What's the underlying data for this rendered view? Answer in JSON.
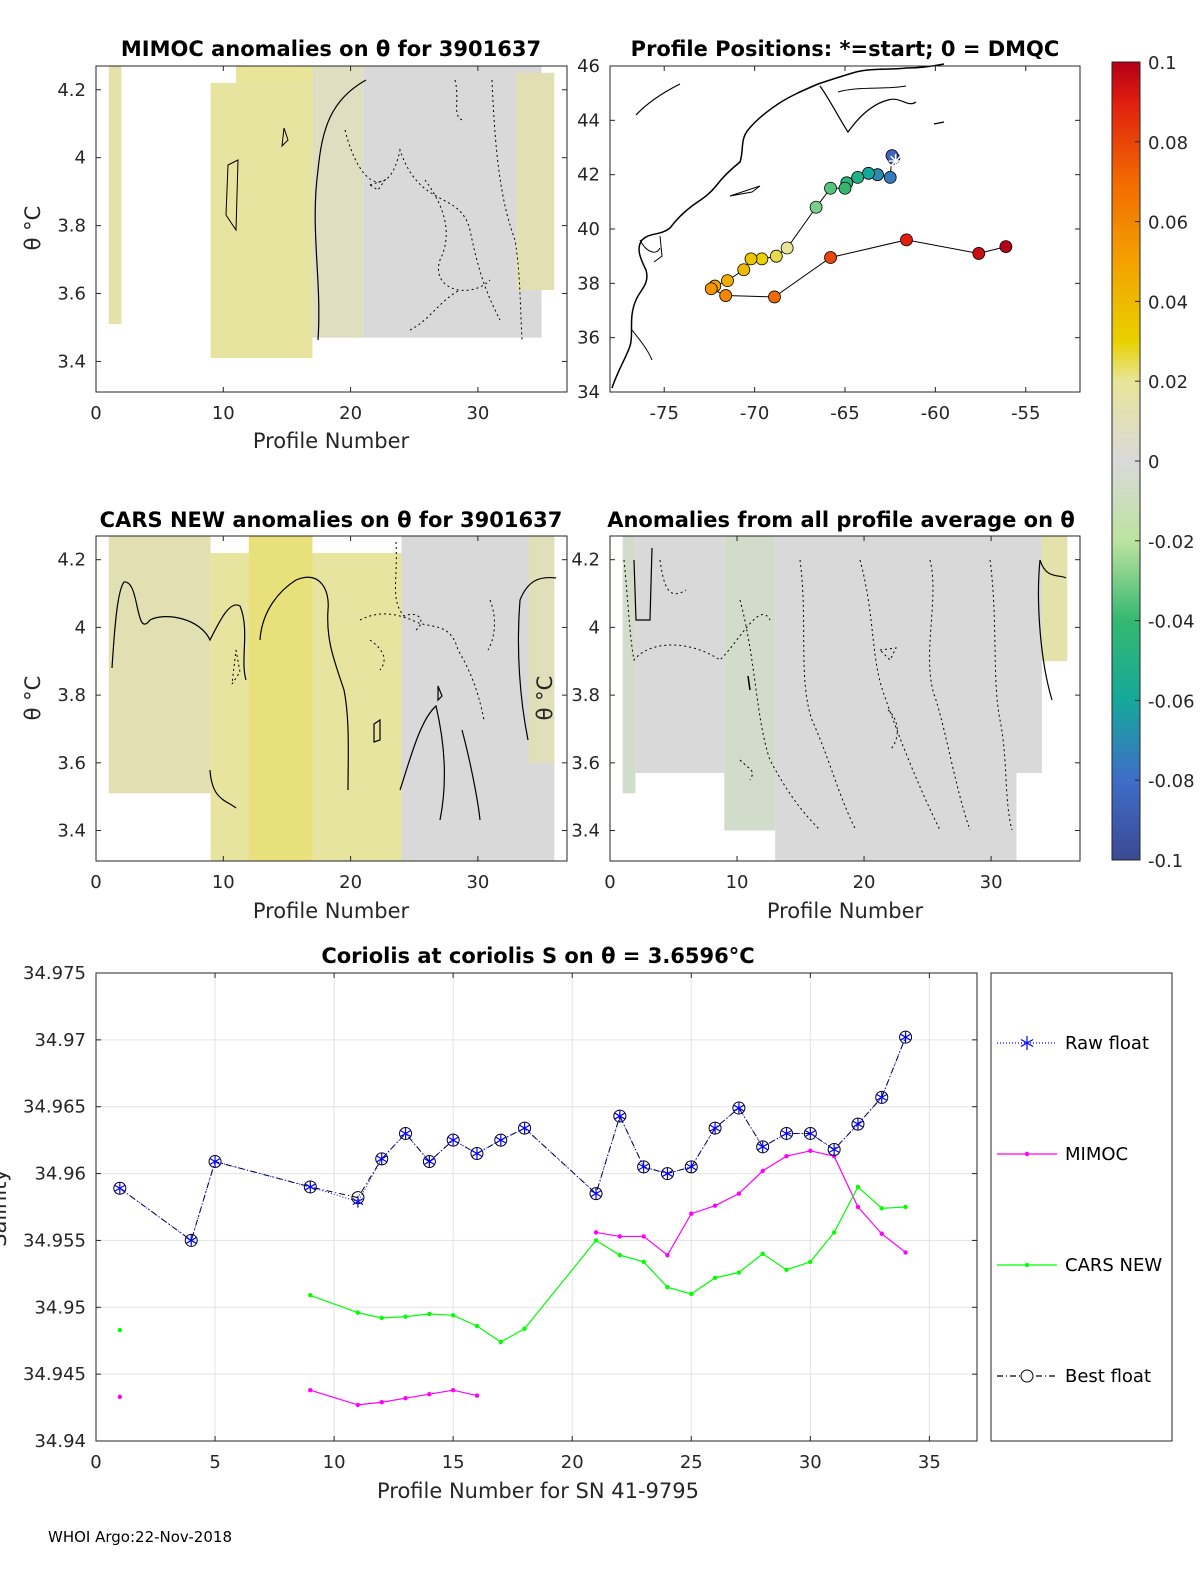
{
  "footer": "WHOI Argo:22-Nov-2018",
  "colors": {
    "raw": "#0000ff",
    "mimoc": "#ff00ff",
    "cars": "#00ff00",
    "best": "#000000",
    "anom_pos": "#e9e07a",
    "anom_neutral": "#d9d9d9",
    "anom_neg": "#cfe8b0",
    "track": "#000000"
  },
  "colorbar": {
    "ticks": [
      "0.1",
      "0.08",
      "0.06",
      "0.04",
      "0.02",
      "0",
      "-0.02",
      "-0.04",
      "-0.06",
      "-0.08",
      "-0.1"
    ],
    "range": [
      -0.1,
      0.1
    ],
    "colormap": "parula-jet",
    "stops": [
      {
        "v": -0.1,
        "c": "#3b4a94"
      },
      {
        "v": -0.08,
        "c": "#3f6dc8"
      },
      {
        "v": -0.06,
        "c": "#15a89a"
      },
      {
        "v": -0.04,
        "c": "#34b870"
      },
      {
        "v": -0.02,
        "c": "#bde3a0"
      },
      {
        "v": 0,
        "c": "#d9d9d9"
      },
      {
        "v": 0.02,
        "c": "#e8e59a"
      },
      {
        "v": 0.03,
        "c": "#e8d100"
      },
      {
        "v": 0.05,
        "c": "#f3a100"
      },
      {
        "v": 0.07,
        "c": "#f26b00"
      },
      {
        "v": 0.09,
        "c": "#e01e10"
      },
      {
        "v": 0.1,
        "c": "#b40016"
      }
    ]
  },
  "chart_data": [
    {
      "id": "mimoc_anom",
      "type": "heatmap",
      "title": "MIMOC anomalies on θ  for 3901637",
      "xlabel": "Profile Number",
      "ylabel": "θ °C",
      "xlim": [
        0,
        37
      ],
      "ylim": [
        3.31,
        4.27
      ],
      "xticks": [
        "0",
        "10",
        "20",
        "30"
      ],
      "yticks": [
        "3.4",
        "3.6",
        "3.8",
        "4",
        "4.2"
      ],
      "columns": [
        {
          "x0": 1,
          "x1": 2,
          "ymin": 3.51,
          "ymax": 4.27,
          "anom": 0.015
        },
        {
          "x0": 9,
          "x1": 17,
          "ymin": 3.41,
          "ymax": 4.22,
          "anom": 0.018
        },
        {
          "x0": 11,
          "x1": 17,
          "ymin": 4.22,
          "ymax": 4.27,
          "anom": 0.02
        },
        {
          "x0": 17,
          "x1": 21,
          "ymin": 3.47,
          "ymax": 4.27,
          "anom": 0.008
        },
        {
          "x0": 21,
          "x1": 35,
          "ymin": 3.47,
          "ymax": 4.27,
          "anom": 0.0
        },
        {
          "x0": 33,
          "x1": 36,
          "ymin": 3.61,
          "ymax": 4.25,
          "anom": 0.012
        }
      ]
    },
    {
      "id": "positions",
      "type": "scatter",
      "title": "Profile Positions: *=start; 0 = DMQC",
      "xlim": [
        -78,
        -52
      ],
      "ylim": [
        34,
        46
      ],
      "xticks": [
        "-75",
        "-70",
        "-65",
        "-60",
        "-55"
      ],
      "yticks": [
        "34",
        "36",
        "38",
        "40",
        "42",
        "44",
        "46"
      ],
      "track": [
        {
          "lon": -62.3,
          "lat": 42.6,
          "c": -0.09
        },
        {
          "lon": -62.4,
          "lat": 42.7,
          "c": -0.085
        },
        {
          "lon": -62.5,
          "lat": 41.9,
          "c": -0.075
        },
        {
          "lon": -63.2,
          "lat": 42.0,
          "c": -0.07
        },
        {
          "lon": -63.7,
          "lat": 42.05,
          "c": -0.06
        },
        {
          "lon": -64.3,
          "lat": 41.9,
          "c": -0.05
        },
        {
          "lon": -64.9,
          "lat": 41.7,
          "c": -0.045
        },
        {
          "lon": -65.0,
          "lat": 41.5,
          "c": -0.04
        },
        {
          "lon": -65.8,
          "lat": 41.5,
          "c": -0.035
        },
        {
          "lon": -66.6,
          "lat": 40.8,
          "c": -0.03
        },
        {
          "lon": -68.2,
          "lat": 39.3,
          "c": 0.02
        },
        {
          "lon": -68.8,
          "lat": 39.0,
          "c": 0.025
        },
        {
          "lon": -69.6,
          "lat": 38.9,
          "c": 0.03
        },
        {
          "lon": -70.2,
          "lat": 38.9,
          "c": 0.035
        },
        {
          "lon": -70.6,
          "lat": 38.5,
          "c": 0.04
        },
        {
          "lon": -71.5,
          "lat": 38.1,
          "c": 0.045
        },
        {
          "lon": -72.2,
          "lat": 37.9,
          "c": 0.05
        },
        {
          "lon": -72.4,
          "lat": 37.8,
          "c": 0.055
        },
        {
          "lon": -71.6,
          "lat": 37.55,
          "c": 0.06
        },
        {
          "lon": -68.9,
          "lat": 37.5,
          "c": 0.07
        },
        {
          "lon": -65.8,
          "lat": 38.95,
          "c": 0.08
        },
        {
          "lon": -61.6,
          "lat": 39.6,
          "c": 0.09
        },
        {
          "lon": -57.6,
          "lat": 39.1,
          "c": 0.095
        },
        {
          "lon": -56.1,
          "lat": 39.35,
          "c": 0.1
        }
      ],
      "start": {
        "lon": -62.2,
        "lat": 42.5
      }
    },
    {
      "id": "cars_anom",
      "type": "heatmap",
      "title": "CARS NEW anomalies on θ for 3901637",
      "xlabel": "Profile Number",
      "ylabel": "θ °C",
      "xlim": [
        0,
        37
      ],
      "ylim": [
        3.31,
        4.27
      ],
      "xticks": [
        "0",
        "10",
        "20",
        "30"
      ],
      "yticks": [
        "3.4",
        "3.6",
        "3.8",
        "4",
        "4.2"
      ],
      "columns": [
        {
          "x0": 1,
          "x1": 9,
          "ymin": 3.51,
          "ymax": 4.27,
          "anom": 0.012
        },
        {
          "x0": 9,
          "x1": 24,
          "ymin": 3.31,
          "ymax": 4.22,
          "anom": 0.018
        },
        {
          "x0": 12,
          "x1": 17,
          "ymin": 3.31,
          "ymax": 4.27,
          "anom": 0.022
        },
        {
          "x0": 24,
          "x1": 36,
          "ymin": 3.31,
          "ymax": 4.27,
          "anom": 0.0
        },
        {
          "x0": 34,
          "x1": 36,
          "ymin": 3.6,
          "ymax": 4.27,
          "anom": 0.01
        }
      ]
    },
    {
      "id": "all_avg_anom",
      "type": "heatmap",
      "title": "Anomalies from all profile average on θ",
      "xlabel": "Profile Number",
      "ylabel": "θ °C",
      "xlim": [
        0,
        37
      ],
      "ylim": [
        3.31,
        4.27
      ],
      "xticks": [
        "0",
        "10",
        "20",
        "30"
      ],
      "yticks": [
        "3.4",
        "3.6",
        "3.8",
        "4",
        "4.2"
      ],
      "columns": [
        {
          "x0": 1,
          "x1": 2,
          "ymin": 3.51,
          "ymax": 4.27,
          "anom": -0.005
        },
        {
          "x0": 2,
          "x1": 9,
          "ymin": 3.57,
          "ymax": 4.27,
          "anom": 0.0
        },
        {
          "x0": 9,
          "x1": 13,
          "ymin": 3.4,
          "ymax": 4.27,
          "anom": -0.005
        },
        {
          "x0": 13,
          "x1": 32,
          "ymin": 3.31,
          "ymax": 4.27,
          "anom": 0.0
        },
        {
          "x0": 32,
          "x1": 34,
          "ymin": 3.57,
          "ymax": 4.27,
          "anom": 0.0
        },
        {
          "x0": 34,
          "x1": 36,
          "ymin": 3.9,
          "ymax": 4.27,
          "anom": 0.015
        }
      ]
    },
    {
      "id": "salinity",
      "type": "line",
      "title": "Coriolis at coriolis S on θ = 3.6596°C",
      "xlabel": "Profile Number for SN 41-9795",
      "ylabel": "Salinity",
      "xlim": [
        0,
        37
      ],
      "ylim": [
        34.94,
        34.975
      ],
      "xticks": [
        "0",
        "5",
        "10",
        "15",
        "20",
        "25",
        "30",
        "35"
      ],
      "yticks": [
        "34.94",
        "34.945",
        "34.95",
        "34.955",
        "34.96",
        "34.965",
        "34.97",
        "34.975"
      ],
      "series": [
        {
          "name": "Raw float",
          "style": "raw",
          "x": [
            1,
            4,
            5,
            9,
            11,
            12,
            13,
            14,
            15,
            16,
            17,
            18,
            21,
            22,
            23,
            24,
            25,
            26,
            27,
            28,
            29,
            30,
            31,
            32,
            33,
            34
          ],
          "y": [
            34.9589,
            34.955,
            34.9609,
            34.959,
            34.9579,
            34.9611,
            34.963,
            34.9609,
            34.9625,
            34.9615,
            34.9625,
            34.9634,
            34.9585,
            34.9643,
            34.9605,
            34.96,
            34.9605,
            34.9634,
            34.9649,
            34.962,
            34.963,
            34.963,
            34.9618,
            34.9637,
            34.9657,
            34.9702
          ]
        },
        {
          "name": "MIMOC",
          "style": "mimoc",
          "segments": [
            {
              "x": [
                1
              ],
              "y": [
                34.9433
              ]
            },
            {
              "x": [
                9,
                11,
                12,
                13,
                14,
                15,
                16
              ],
              "y": [
                34.9438,
                34.9427,
                34.9429,
                34.9432,
                34.9435,
                34.9438,
                34.9434
              ]
            },
            {
              "x": [
                21,
                22,
                23,
                24,
                25,
                26,
                27,
                28,
                29,
                30,
                31,
                32,
                33,
                34
              ],
              "y": [
                34.9556,
                34.9553,
                34.9553,
                34.9539,
                34.957,
                34.9576,
                34.9585,
                34.9602,
                34.9613,
                34.9617,
                34.9613,
                34.9575,
                34.9555,
                34.9541
              ]
            }
          ]
        },
        {
          "name": "CARS NEW",
          "style": "cars",
          "segments": [
            {
              "x": [
                1
              ],
              "y": [
                34.9483
              ]
            },
            {
              "x": [
                9,
                11,
                12,
                13,
                14,
                15,
                16,
                17,
                18,
                21,
                22,
                23,
                24,
                25,
                26,
                27,
                28,
                29,
                30,
                31,
                32,
                33,
                34
              ],
              "y": [
                34.9509,
                34.9496,
                34.9492,
                34.9493,
                34.9495,
                34.9494,
                34.9486,
                34.9474,
                34.9484,
                34.955,
                34.9539,
                34.9534,
                34.9515,
                34.951,
                34.9522,
                34.9526,
                34.954,
                34.9528,
                34.9534,
                34.9556,
                34.959,
                34.9574,
                34.9575
              ]
            }
          ]
        },
        {
          "name": "Best float",
          "style": "best",
          "x": [
            1,
            4,
            5,
            9,
            11,
            12,
            13,
            14,
            15,
            16,
            17,
            18,
            21,
            22,
            23,
            24,
            25,
            26,
            27,
            28,
            29,
            30,
            31,
            32,
            33,
            34
          ],
          "y": [
            34.9589,
            34.955,
            34.9609,
            34.959,
            34.9582,
            34.9611,
            34.963,
            34.9609,
            34.9625,
            34.9615,
            34.9625,
            34.9634,
            34.9585,
            34.9643,
            34.9605,
            34.96,
            34.9605,
            34.9634,
            34.9649,
            34.962,
            34.963,
            34.963,
            34.9618,
            34.9637,
            34.9657,
            34.9702
          ]
        }
      ],
      "legend": [
        "Raw float",
        "MIMOC",
        "CARS NEW",
        "Best float"
      ]
    }
  ]
}
